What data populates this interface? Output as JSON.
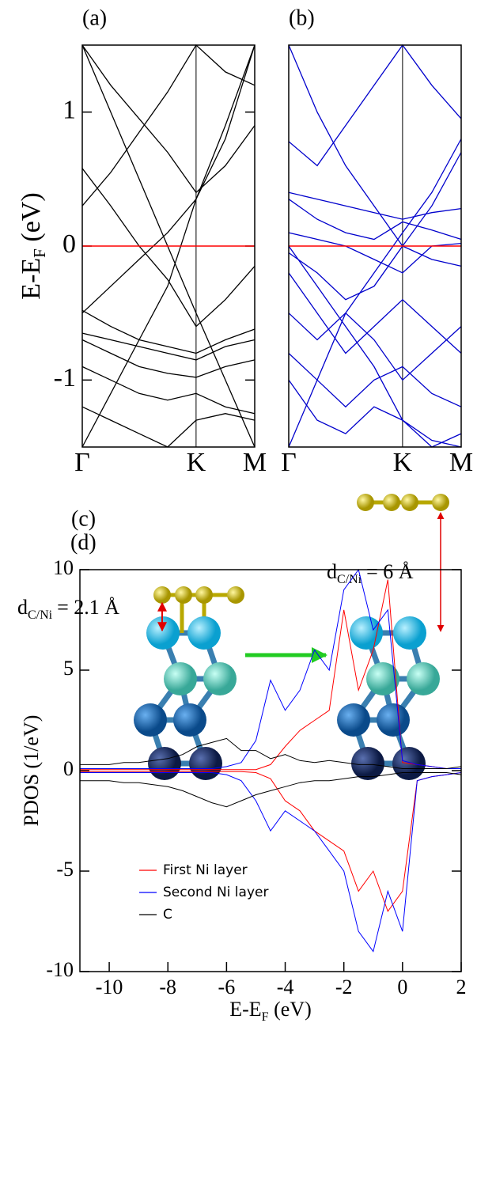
{
  "chart_data": [
    {
      "type": "line",
      "panel_label": "(a)",
      "ylabel": {
        "main": "E-E",
        "sub": "F",
        "tail": "(eV)"
      },
      "x": [
        0,
        0.165,
        0.33,
        0.495,
        0.66,
        0.83,
        1
      ],
      "xlim": [
        0,
        1
      ],
      "ylim": [
        -1.5,
        1.5
      ],
      "xticks": [
        {
          "value": 0,
          "label": "Γ"
        },
        {
          "value": 0.66,
          "label": "K"
        },
        {
          "value": 1,
          "label": "M"
        }
      ],
      "yticks": [
        1,
        0,
        -1
      ],
      "kpoint_lines": true,
      "hline": {
        "value": 0,
        "color": "#ff0000"
      },
      "series": [
        {
          "color": "#000000",
          "values": [
            1.5,
            1.2,
            0.95,
            0.7,
            0.4,
            0.6,
            0.9
          ]
        },
        {
          "color": "#000000",
          "values": [
            0.58,
            0.3,
            0.0,
            -0.25,
            -0.6,
            -0.4,
            -0.15
          ]
        },
        {
          "color": "#000000",
          "values": [
            -0.5,
            -0.3,
            -0.1,
            0.1,
            0.35,
            0.8,
            1.5
          ]
        },
        {
          "color": "#000000",
          "values": [
            -0.48,
            -0.6,
            -0.7,
            -0.75,
            -0.8,
            -0.7,
            -0.62
          ]
        },
        {
          "color": "#000000",
          "values": [
            -0.65,
            -0.7,
            -0.75,
            -0.8,
            -0.85,
            -0.75,
            -0.7
          ]
        },
        {
          "color": "#000000",
          "values": [
            -0.7,
            -0.8,
            -0.9,
            -0.95,
            -0.98,
            -0.9,
            -0.85
          ]
        },
        {
          "color": "#000000",
          "values": [
            -0.9,
            -1.0,
            -1.1,
            -1.15,
            -1.1,
            -1.2,
            -1.25
          ]
        },
        {
          "color": "#000000",
          "values": [
            -1.2,
            -1.3,
            -1.4,
            -1.5,
            -1.3,
            -1.25,
            -1.3
          ]
        },
        {
          "color": "#000000",
          "values": [
            1.5,
            1.0,
            0.5,
            0.0,
            -0.5,
            -1.0,
            -1.5
          ]
        },
        {
          "color": "#000000",
          "values": [
            -1.5,
            -1.1,
            -0.7,
            -0.3,
            0.35,
            0.9,
            1.5
          ]
        },
        {
          "color": "#000000",
          "values": [
            0.3,
            0.55,
            0.85,
            1.15,
            1.5,
            1.3,
            1.2
          ]
        }
      ]
    },
    {
      "type": "line",
      "panel_label": "(b)",
      "x": [
        0,
        0.165,
        0.33,
        0.495,
        0.66,
        0.83,
        1
      ],
      "xlim": [
        0,
        1
      ],
      "ylim": [
        -1.5,
        1.5
      ],
      "xticks": [
        {
          "value": 0,
          "label": "Γ"
        },
        {
          "value": 0.66,
          "label": "K"
        },
        {
          "value": 1,
          "label": "M"
        }
      ],
      "kpoint_lines": true,
      "hline": {
        "value": 0,
        "color": "#ff0000"
      },
      "series": [
        {
          "color": "#0000cc",
          "values": [
            0.78,
            0.6,
            0.9,
            1.2,
            1.5,
            1.2,
            0.95
          ]
        },
        {
          "color": "#0000cc",
          "values": [
            0.4,
            0.35,
            0.3,
            0.25,
            0.2,
            0.25,
            0.28
          ]
        },
        {
          "color": "#0000cc",
          "values": [
            0.35,
            0.2,
            0.1,
            0.05,
            0.18,
            0.12,
            0.05
          ]
        },
        {
          "color": "#0000cc",
          "values": [
            0.1,
            0.05,
            0.0,
            -0.1,
            -0.2,
            0.0,
            0.02
          ]
        },
        {
          "color": "#0000cc",
          "values": [
            -0.05,
            -0.2,
            -0.4,
            -0.3,
            0.0,
            -0.1,
            -0.15
          ]
        },
        {
          "color": "#0000cc",
          "values": [
            1.5,
            1.0,
            0.6,
            0.3,
            0.0,
            0.3,
            0.7
          ]
        },
        {
          "color": "#0000cc",
          "values": [
            -0.2,
            -0.5,
            -0.8,
            -0.6,
            -0.4,
            -0.6,
            -0.8
          ]
        },
        {
          "color": "#0000cc",
          "values": [
            -0.5,
            -0.7,
            -0.5,
            -0.7,
            -1.0,
            -0.8,
            -0.6
          ]
        },
        {
          "color": "#0000cc",
          "values": [
            -0.8,
            -1.0,
            -1.2,
            -1.0,
            -0.9,
            -1.1,
            -1.2
          ]
        },
        {
          "color": "#0000cc",
          "values": [
            -1.0,
            -1.3,
            -1.4,
            -1.2,
            -1.3,
            -1.45,
            -1.5
          ]
        },
        {
          "color": "#0000cc",
          "values": [
            -1.5,
            -1.0,
            -0.5,
            -0.2,
            0.1,
            0.4,
            0.8
          ]
        },
        {
          "color": "#0000cc",
          "values": [
            0.0,
            -0.3,
            -0.6,
            -0.9,
            -1.3,
            -1.5,
            -1.4
          ]
        }
      ]
    },
    {
      "type": "line",
      "panel_label": "(d)",
      "ylabel": "PDOS (1/eV)",
      "xlabel": {
        "main": "E-E",
        "sub": "F",
        "tail": "(eV)"
      },
      "x": [
        -11,
        -10.5,
        -10,
        -9.5,
        -9,
        -8.5,
        -8,
        -7.5,
        -7,
        -6.5,
        -6,
        -5.5,
        -5,
        -4.5,
        -4,
        -3.5,
        -3,
        -2.5,
        -2,
        -1.5,
        -1,
        -0.5,
        0,
        0.5,
        1,
        1.5,
        2
      ],
      "xlim": [
        -11,
        2
      ],
      "ylim": [
        -10,
        10
      ],
      "xticks": [
        -10,
        -8,
        -6,
        -4,
        -2,
        0,
        2
      ],
      "yticks": [
        10,
        5,
        0,
        -5,
        -10
      ],
      "legend": "lower left",
      "series": [
        {
          "name": "First Ni layer",
          "color": "#ff0000",
          "values": [
            0.05,
            0.05,
            0.05,
            0.05,
            0.05,
            0.05,
            0.05,
            0.05,
            0.05,
            0.05,
            0.05,
            0.05,
            0.05,
            0.3,
            1.2,
            2,
            2.5,
            3,
            8,
            4,
            6,
            9.5,
            0.4,
            0.3,
            0.2,
            0.1,
            0.1
          ],
          "values_down": [
            -0.05,
            -0.05,
            -0.05,
            -0.05,
            -0.05,
            -0.05,
            -0.05,
            -0.05,
            -0.05,
            -0.05,
            -0.05,
            -0.05,
            -0.1,
            -0.4,
            -1.5,
            -2,
            -3,
            -3.5,
            -4,
            -6,
            -5,
            -7,
            -6,
            -0.5,
            -0.3,
            -0.2,
            -0.1
          ]
        },
        {
          "name": "Second Ni layer",
          "color": "#0000ff",
          "values": [
            0.1,
            0.1,
            0.1,
            0.1,
            0.1,
            0.1,
            0.1,
            0.1,
            0.1,
            0.1,
            0.2,
            0.4,
            1.5,
            4.5,
            3,
            4,
            6,
            5,
            9,
            10,
            7,
            8,
            0.5,
            0.3,
            0.2,
            0.1,
            0.1
          ],
          "values_down": [
            -0.1,
            -0.1,
            -0.1,
            -0.1,
            -0.1,
            -0.1,
            -0.1,
            -0.1,
            -0.1,
            -0.1,
            -0.2,
            -0.5,
            -1.5,
            -3,
            -2,
            -2.5,
            -3,
            -4,
            -5,
            -8,
            -9,
            -6,
            -8,
            -0.5,
            -0.3,
            -0.2,
            -0.1
          ]
        },
        {
          "name": "C",
          "color": "#000000",
          "values": [
            0.3,
            0.3,
            0.3,
            0.4,
            0.4,
            0.5,
            0.6,
            0.8,
            1.2,
            1.4,
            1.6,
            1.0,
            1.0,
            0.6,
            0.8,
            0.5,
            0.4,
            0.5,
            0.4,
            0.3,
            0.3,
            0.2,
            0.1,
            0.1,
            0.1,
            0.1,
            0.2
          ],
          "values_down": [
            -0.5,
            -0.5,
            -0.5,
            -0.6,
            -0.6,
            -0.7,
            -0.8,
            -1,
            -1.3,
            -1.6,
            -1.8,
            -1.5,
            -1.2,
            -1,
            -0.8,
            -0.6,
            -0.5,
            -0.5,
            -0.4,
            -0.3,
            -0.3,
            -0.2,
            -0.1,
            -0.1,
            -0.1,
            -0.1,
            -0.2
          ]
        }
      ]
    }
  ],
  "diagram": {
    "label": "(c)",
    "left": {
      "main": "d",
      "sub": "C/Ni",
      "tail": "= 2.1 Å"
    },
    "right": {
      "main": "d",
      "sub": "C/Ni",
      "tail": "= 6 Å"
    }
  }
}
